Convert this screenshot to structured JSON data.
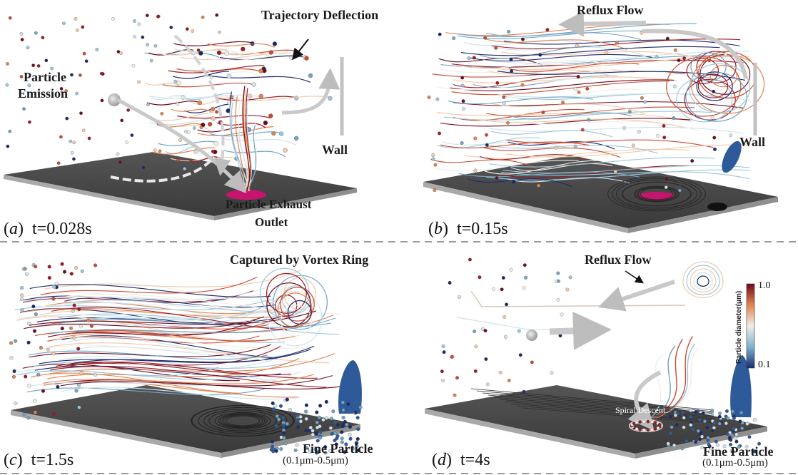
{
  "panels": [
    {
      "caption_letter": "a",
      "caption_time": "t=0.028s",
      "labels": {
        "deflection": "Trajectory Deflection",
        "emission_1": "Particle",
        "emission_2": "Emission",
        "wall": "Wall",
        "exhaust_1": "Particle Exhaust",
        "exhaust_2": "Outlet"
      }
    },
    {
      "caption_letter": "b",
      "caption_time": "t=0.15s",
      "labels": {
        "reflux": "Reflux Flow",
        "wall": "Wall"
      }
    },
    {
      "caption_letter": "c",
      "caption_time": "t=1.5s",
      "labels": {
        "captured": "Captured by Vortex Ring",
        "fine_1": "Fine Particle",
        "fine_2": "(0.1μm-0.5μm)"
      }
    },
    {
      "caption_letter": "d",
      "caption_time": "t=4s",
      "labels": {
        "reflux": "Reflux Flow",
        "spiral": "Spiral Descent",
        "fine_1": "Fine Particle",
        "fine_2": "(0.1μm-0.5μm)"
      }
    }
  ],
  "colorbar": {
    "title": "Particle diameter(μm)",
    "max_label": "1.0",
    "min_label": "0.1",
    "min_value": 0.1,
    "max_value": 1.0,
    "color_low": "#1c2a6b",
    "color_mid": "#f2eee6",
    "color_high": "#6e0b1c"
  },
  "colors": {
    "floor": "#4a4a4a",
    "outlet": "#c8146e",
    "wall_patch": "#2e5a9a",
    "arrow": "#c8c8c8"
  }
}
